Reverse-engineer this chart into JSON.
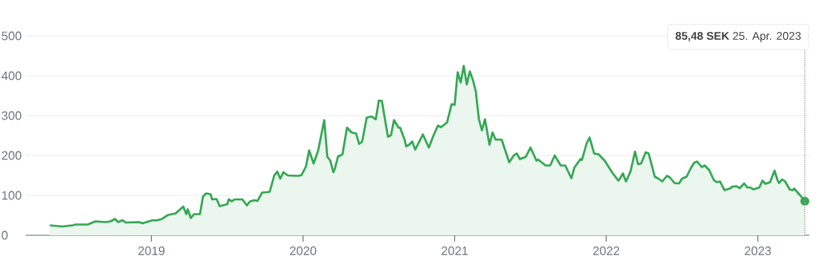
{
  "chart_data": {
    "type": "area",
    "color": "#34a853",
    "line_style": "solid",
    "x": [
      2018.33,
      2018.41,
      2018.48,
      2018.5,
      2018.58,
      2018.63,
      2018.7,
      2018.73,
      2018.76,
      2018.78,
      2018.81,
      2018.83,
      2018.92,
      2018.94,
      2019.01,
      2019.03,
      2019.07,
      2019.11,
      2019.16,
      2019.21,
      2019.23,
      2019.24,
      2019.26,
      2019.28,
      2019.32,
      2019.34,
      2019.36,
      2019.39,
      2019.4,
      2019.43,
      2019.45,
      2019.5,
      2019.51,
      2019.53,
      2019.55,
      2019.6,
      2019.63,
      2019.65,
      2019.68,
      2019.7,
      2019.73,
      2019.78,
      2019.81,
      2019.83,
      2019.85,
      2019.87,
      2019.9,
      2019.97,
      2019.99,
      2020.02,
      2020.04,
      2020.07,
      2020.1,
      2020.14,
      2020.16,
      2020.18,
      2020.2,
      2020.21,
      2020.23,
      2020.26,
      2020.29,
      2020.32,
      2020.35,
      2020.37,
      2020.39,
      2020.42,
      2020.45,
      2020.48,
      2020.5,
      2020.52,
      2020.56,
      2020.58,
      2020.6,
      2020.63,
      2020.64,
      2020.67,
      2020.68,
      2020.7,
      2020.72,
      2020.74,
      2020.76,
      2020.77,
      2020.79,
      2020.83,
      2020.86,
      2020.89,
      2020.91,
      2020.95,
      2020.98,
      2021.0,
      2021.02,
      2021.04,
      2021.06,
      2021.08,
      2021.1,
      2021.12,
      2021.14,
      2021.16,
      2021.18,
      2021.2,
      2021.23,
      2021.25,
      2021.27,
      2021.31,
      2021.36,
      2021.39,
      2021.41,
      2021.43,
      2021.47,
      2021.5,
      2021.54,
      2021.55,
      2021.6,
      2021.63,
      2021.66,
      2021.7,
      2021.73,
      2021.77,
      2021.79,
      2021.83,
      2021.84,
      2021.87,
      2021.89,
      2021.92,
      2021.95,
      2021.99,
      2022.04,
      2022.08,
      2022.09,
      2022.11,
      2022.13,
      2022.16,
      2022.19,
      2022.21,
      2022.23,
      2022.26,
      2022.28,
      2022.32,
      2022.34,
      2022.37,
      2022.4,
      2022.42,
      2022.45,
      2022.48,
      2022.5,
      2022.53,
      2022.56,
      2022.58,
      2022.6,
      2022.63,
      2022.65,
      2022.68,
      2022.71,
      2022.73,
      2022.75,
      2022.78,
      2022.82,
      2022.83,
      2022.86,
      2022.88,
      2022.91,
      2022.93,
      2022.95,
      2022.97,
      2023.01,
      2023.03,
      2023.05,
      2023.08,
      2023.11,
      2023.13,
      2023.14,
      2023.16,
      2023.18,
      2023.21,
      2023.23,
      2023.24,
      2023.28,
      2023.31
    ],
    "values": [
      25,
      22,
      25,
      27,
      27,
      35,
      33,
      35,
      41,
      33,
      38,
      32,
      33,
      30,
      38,
      37,
      41,
      51,
      55,
      72,
      53,
      65,
      43,
      53,
      53,
      97,
      105,
      103,
      90,
      91,
      73,
      78,
      90,
      85,
      90,
      90,
      75,
      85,
      88,
      86,
      107,
      109,
      150,
      160,
      142,
      158,
      150,
      149,
      151,
      173,
      213,
      180,
      213,
      289,
      197,
      187,
      158,
      167,
      197,
      203,
      270,
      258,
      255,
      229,
      235,
      295,
      298,
      291,
      338,
      337,
      247,
      251,
      289,
      270,
      270,
      240,
      223,
      227,
      235,
      215,
      230,
      237,
      253,
      220,
      250,
      275,
      271,
      283,
      329,
      327,
      409,
      383,
      425,
      378,
      411,
      390,
      360,
      291,
      263,
      291,
      227,
      258,
      240,
      240,
      183,
      200,
      205,
      191,
      197,
      220,
      187,
      190,
      175,
      175,
      200,
      175,
      175,
      143,
      170,
      191,
      189,
      230,
      245,
      205,
      203,
      187,
      157,
      137,
      142,
      155,
      135,
      160,
      210,
      178,
      180,
      208,
      205,
      147,
      143,
      135,
      149,
      145,
      131,
      130,
      142,
      147,
      170,
      182,
      185,
      171,
      175,
      163,
      138,
      133,
      135,
      113,
      118,
      122,
      123,
      118,
      130,
      120,
      120,
      115,
      120,
      137,
      129,
      133,
      162,
      138,
      131,
      140,
      135,
      115,
      113,
      117,
      100,
      85.48
    ],
    "xlim": [
      2018.17,
      2023.34
    ],
    "xticks": [
      2019,
      2020,
      2021,
      2022,
      2023
    ],
    "ylim": [
      0,
      500
    ],
    "yticks": [
      0,
      100,
      200,
      300,
      400,
      500
    ],
    "grid": "y",
    "ref_lines": [
      {
        "axis": "x",
        "value": 2023.31,
        "line_style": "dotted",
        "color": "#9aa0a6"
      }
    ],
    "annotations": [
      "**85,48 SEK** 25. Apr. 2023"
    ]
  }
}
